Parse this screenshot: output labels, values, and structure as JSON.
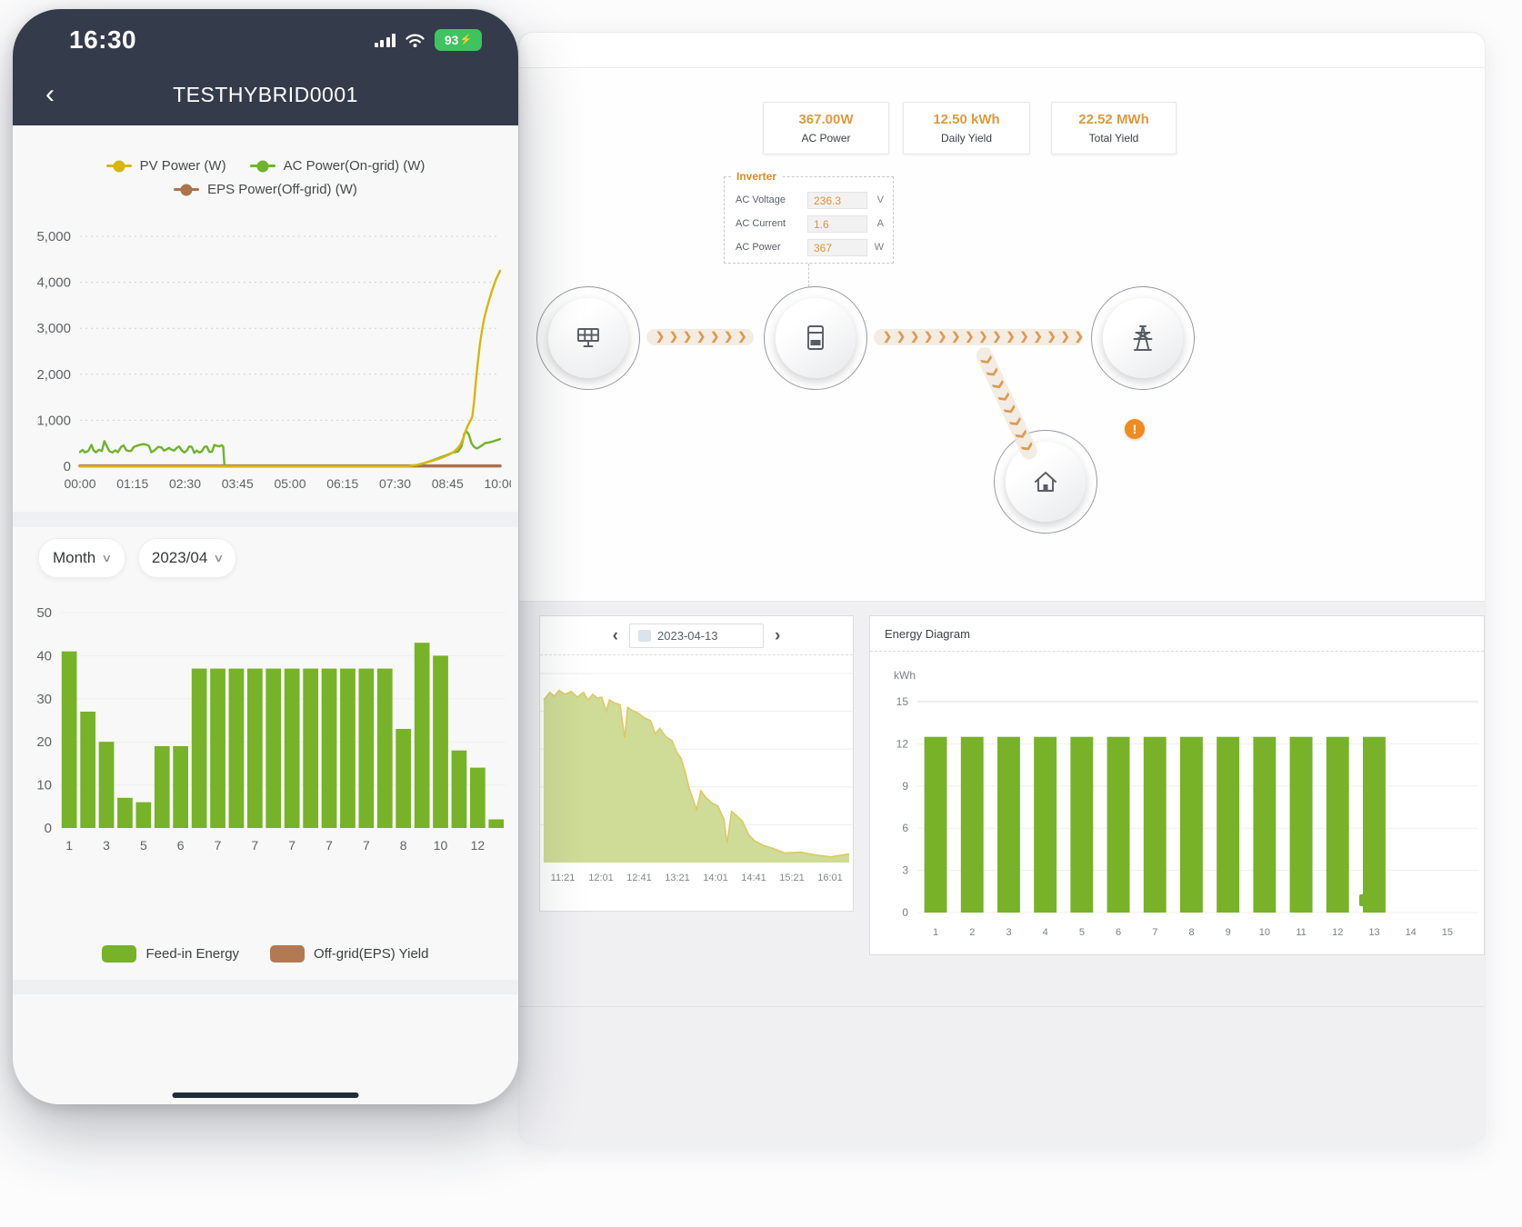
{
  "phone": {
    "status_bar": {
      "time": "16:30",
      "battery_percent": "93",
      "battery_bolt": "⚡"
    },
    "nav": {
      "back_icon": "‹",
      "title": "TESTHYBRID0001"
    },
    "line_chart": {
      "legend": [
        {
          "label": "PV Power (W)",
          "color": "#d9b50e"
        },
        {
          "label": "AC Power(On-grid) (W)",
          "color": "#6fb42c"
        },
        {
          "label": "EPS Power(Off-grid) (W)",
          "color": "#aa734d"
        }
      ],
      "ylim": [
        0,
        5000
      ],
      "yticks": [
        {
          "value": 0,
          "label": "0"
        },
        {
          "value": 1000,
          "label": "1,000"
        },
        {
          "value": 2000,
          "label": "2,000"
        },
        {
          "value": 3000,
          "label": "3,000"
        },
        {
          "value": 4000,
          "label": "4,000"
        },
        {
          "value": 5000,
          "label": "5,000"
        }
      ],
      "xticks": [
        "00:00",
        "01:15",
        "02:30",
        "03:45",
        "05:00",
        "06:15",
        "07:30",
        "08:45",
        "10:00"
      ],
      "series": [
        {
          "name": "EPS Power(Off-grid) (W)",
          "color": "#aa734d",
          "width": 3.5,
          "points": [
            [
              0,
              8
            ],
            [
              1,
              8
            ]
          ]
        },
        {
          "name": "AC Power(On-grid) (W)",
          "color": "#6fb42c",
          "width": 2.4,
          "points": [
            [
              0,
              310
            ],
            [
              0.006,
              355
            ],
            [
              0.012,
              300
            ],
            [
              0.02,
              335
            ],
            [
              0.027,
              465
            ],
            [
              0.032,
              350
            ],
            [
              0.038,
              300
            ],
            [
              0.045,
              360
            ],
            [
              0.052,
              330
            ],
            [
              0.058,
              545
            ],
            [
              0.064,
              430
            ],
            [
              0.07,
              330
            ],
            [
              0.077,
              300
            ],
            [
              0.084,
              345
            ],
            [
              0.09,
              305
            ],
            [
              0.098,
              420
            ],
            [
              0.104,
              455
            ],
            [
              0.11,
              350
            ],
            [
              0.116,
              330
            ],
            [
              0.122,
              335
            ],
            [
              0.128,
              420
            ],
            [
              0.134,
              440
            ],
            [
              0.142,
              465
            ],
            [
              0.15,
              480
            ],
            [
              0.158,
              470
            ],
            [
              0.164,
              440
            ],
            [
              0.17,
              305
            ],
            [
              0.178,
              350
            ],
            [
              0.186,
              420
            ],
            [
              0.194,
              410
            ],
            [
              0.2,
              340
            ],
            [
              0.206,
              365
            ],
            [
              0.212,
              400
            ],
            [
              0.218,
              360
            ],
            [
              0.224,
              340
            ],
            [
              0.23,
              400
            ],
            [
              0.236,
              430
            ],
            [
              0.242,
              350
            ],
            [
              0.248,
              300
            ],
            [
              0.254,
              335
            ],
            [
              0.26,
              430
            ],
            [
              0.266,
              420
            ],
            [
              0.272,
              290
            ],
            [
              0.278,
              340
            ],
            [
              0.284,
              300
            ],
            [
              0.29,
              325
            ],
            [
              0.296,
              420
            ],
            [
              0.302,
              430
            ],
            [
              0.308,
              310
            ],
            [
              0.314,
              315
            ],
            [
              0.32,
              465
            ],
            [
              0.326,
              445
            ],
            [
              0.332,
              430
            ],
            [
              0.337,
              460
            ],
            [
              0.341,
              430
            ],
            [
              0.344,
              0
            ],
            [
              0.45,
              0
            ],
            [
              0.6,
              0
            ],
            [
              0.78,
              0
            ],
            [
              0.8,
              15
            ],
            [
              0.82,
              70
            ],
            [
              0.84,
              130
            ],
            [
              0.86,
              200
            ],
            [
              0.875,
              250
            ],
            [
              0.888,
              300
            ],
            [
              0.9,
              320
            ],
            [
              0.908,
              430
            ],
            [
              0.915,
              710
            ],
            [
              0.92,
              760
            ],
            [
              0.926,
              680
            ],
            [
              0.932,
              500
            ],
            [
              0.938,
              420
            ],
            [
              0.945,
              385
            ],
            [
              0.955,
              440
            ],
            [
              0.965,
              505
            ],
            [
              0.975,
              520
            ],
            [
              0.985,
              545
            ],
            [
              1,
              590
            ]
          ]
        },
        {
          "name": "PV Power (W)",
          "color": "#d9b50e",
          "width": 2.4,
          "points": [
            [
              0,
              0
            ],
            [
              0.78,
              0
            ],
            [
              0.8,
              25
            ],
            [
              0.82,
              70
            ],
            [
              0.84,
              120
            ],
            [
              0.86,
              180
            ],
            [
              0.875,
              240
            ],
            [
              0.888,
              300
            ],
            [
              0.898,
              380
            ],
            [
              0.906,
              480
            ],
            [
              0.912,
              600
            ],
            [
              0.918,
              760
            ],
            [
              0.924,
              900
            ],
            [
              0.93,
              1000
            ],
            [
              0.934,
              1080
            ],
            [
              0.938,
              1400
            ],
            [
              0.942,
              1800
            ],
            [
              0.947,
              2250
            ],
            [
              0.952,
              2650
            ],
            [
              0.957,
              2950
            ],
            [
              0.962,
              3200
            ],
            [
              0.968,
              3420
            ],
            [
              0.975,
              3650
            ],
            [
              0.982,
              3850
            ],
            [
              0.99,
              4060
            ],
            [
              1,
              4250
            ]
          ]
        }
      ]
    },
    "filters": {
      "period": "Month",
      "month": "2023/04",
      "chevron_icon": "∨"
    },
    "bar_chart": {
      "ylim": [
        0,
        50
      ],
      "yticks": [
        0,
        10,
        20,
        30,
        40,
        50
      ],
      "values": [
        41,
        27,
        20,
        7,
        6,
        19,
        19,
        37,
        37,
        37,
        37,
        37,
        37,
        37,
        37,
        37,
        37,
        37,
        23,
        43,
        40,
        18,
        14,
        2
      ],
      "xlabels": [
        "1",
        "3",
        "5",
        "6",
        "7",
        "7",
        "7",
        "7",
        "7",
        "8",
        "10",
        "12"
      ],
      "color": "#77b229"
    },
    "bar_legend": [
      {
        "label": "Feed-in Energy",
        "color": "#77b229"
      },
      {
        "label": "Off-grid(EPS) Yield",
        "color": "#b17a52"
      }
    ]
  },
  "desktop": {
    "stats": [
      {
        "value": "367.00W",
        "label": "AC Power"
      },
      {
        "value": "12.50 kWh",
        "label": "Daily Yield"
      },
      {
        "value": "22.52 MWh",
        "label": "Total Yield"
      }
    ],
    "inverter_panel": {
      "title": "Inverter",
      "rows": [
        {
          "label": "AC Voltage",
          "value": "236.3",
          "unit": "V"
        },
        {
          "label": "AC Current",
          "value": "1.6",
          "unit": "A"
        },
        {
          "label": "AC Power",
          "value": "367",
          "unit": "W"
        }
      ]
    },
    "flow": {
      "warning": "!"
    },
    "day_panel": {
      "prev_icon": "‹",
      "next_icon": "›",
      "date": "2023-04-13",
      "area_chart": {
        "fill": "#cbd98e",
        "stroke": "#dcc963",
        "xticks": [
          "11:21",
          "12:01",
          "12:41",
          "13:21",
          "14:01",
          "14:41",
          "15:21",
          "16:01"
        ],
        "points": [
          [
            0,
            0.86
          ],
          [
            0.02,
            0.9
          ],
          [
            0.035,
            0.88
          ],
          [
            0.05,
            0.91
          ],
          [
            0.07,
            0.89
          ],
          [
            0.09,
            0.905
          ],
          [
            0.11,
            0.875
          ],
          [
            0.13,
            0.9
          ],
          [
            0.145,
            0.86
          ],
          [
            0.16,
            0.89
          ],
          [
            0.175,
            0.87
          ],
          [
            0.19,
            0.875
          ],
          [
            0.205,
            0.8
          ],
          [
            0.215,
            0.86
          ],
          [
            0.23,
            0.845
          ],
          [
            0.25,
            0.835
          ],
          [
            0.265,
            0.66
          ],
          [
            0.275,
            0.82
          ],
          [
            0.29,
            0.805
          ],
          [
            0.31,
            0.79
          ],
          [
            0.33,
            0.765
          ],
          [
            0.35,
            0.75
          ],
          [
            0.365,
            0.68
          ],
          [
            0.38,
            0.71
          ],
          [
            0.4,
            0.665
          ],
          [
            0.42,
            0.645
          ],
          [
            0.435,
            0.585
          ],
          [
            0.45,
            0.55
          ],
          [
            0.465,
            0.47
          ],
          [
            0.475,
            0.4
          ],
          [
            0.49,
            0.33
          ],
          [
            0.5,
            0.28
          ],
          [
            0.515,
            0.38
          ],
          [
            0.53,
            0.345
          ],
          [
            0.55,
            0.315
          ],
          [
            0.57,
            0.3
          ],
          [
            0.59,
            0.23
          ],
          [
            0.6,
            0.1
          ],
          [
            0.615,
            0.27
          ],
          [
            0.63,
            0.25
          ],
          [
            0.65,
            0.22
          ],
          [
            0.67,
            0.15
          ],
          [
            0.69,
            0.115
          ],
          [
            0.72,
            0.09
          ],
          [
            0.75,
            0.075
          ],
          [
            0.79,
            0.05
          ],
          [
            0.84,
            0.055
          ],
          [
            0.89,
            0.04
          ],
          [
            0.94,
            0.03
          ],
          [
            1,
            0.045
          ]
        ]
      }
    },
    "energy_panel": {
      "title": "Energy Diagram",
      "ylabel": "kWh",
      "ylim": [
        0,
        15
      ],
      "yticks": [
        0,
        3,
        6,
        9,
        12,
        15
      ],
      "values": [
        12.5,
        12.5,
        12.5,
        12.5,
        12.5,
        12.5,
        12.5,
        12.5,
        12.5,
        12.5,
        12.5,
        12.5,
        12.5,
        0,
        0
      ],
      "xlabels": [
        "1",
        "2",
        "3",
        "4",
        "5",
        "6",
        "7",
        "8",
        "9",
        "10",
        "11",
        "12",
        "13",
        "14",
        "15"
      ],
      "color": "#77b229"
    }
  }
}
